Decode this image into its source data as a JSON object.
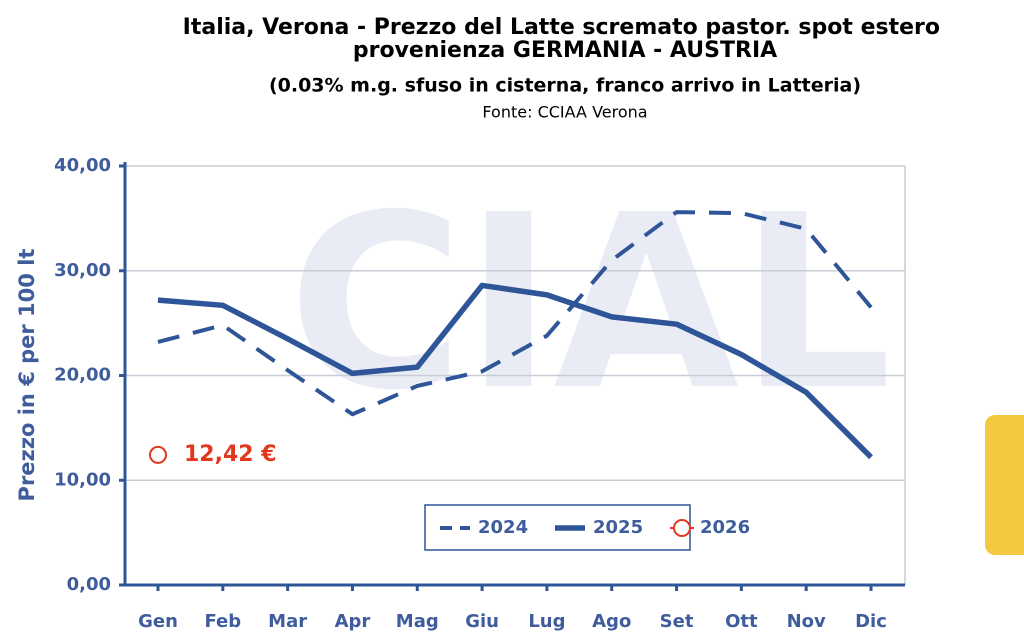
{
  "chart_data": {
    "type": "line",
    "title": "Italia, Verona - Prezzo del Latte scremato pastor. spot estero",
    "title_line2": "provenienza GERMANIA - AUSTRIA",
    "subtitle": "(0.03% m.g. sfuso in cisterna, franco arrivo in Latteria)",
    "source": "Fonte: CCIAA Verona",
    "watermark": "CIAL",
    "y_label": "Prezzo in € per 100 lt",
    "categories": [
      "Gen",
      "Feb",
      "Mar",
      "Apr",
      "Mag",
      "Giu",
      "Lug",
      "Ago",
      "Set",
      "Ott",
      "Nov",
      "Dic"
    ],
    "series": [
      {
        "name": "2024",
        "color": "#2e5597",
        "style": "dashed",
        "values": [
          23.2,
          24.8,
          20.5,
          16.3,
          19.0,
          20.4,
          23.8,
          31.0,
          35.6,
          35.5,
          34.0,
          26.5
        ]
      },
      {
        "name": "2025",
        "color": "#2e5597",
        "style": "solid",
        "values": [
          27.2,
          26.7,
          23.5,
          20.2,
          20.8,
          28.6,
          27.7,
          25.6,
          24.9,
          22.0,
          18.4,
          12.2
        ]
      },
      {
        "name": "2026",
        "color": "#e2381d",
        "style": "marker",
        "values": [
          12.42,
          null,
          null,
          null,
          null,
          null,
          null,
          null,
          null,
          null,
          null,
          null
        ],
        "value_labels": [
          "12,42 €",
          null,
          null,
          null,
          null,
          null,
          null,
          null,
          null,
          null,
          null,
          null
        ]
      }
    ],
    "ylim": [
      0,
      40
    ],
    "yticks": [
      {
        "value": 0,
        "label": "0,00"
      },
      {
        "value": 10,
        "label": "10,00"
      },
      {
        "value": 20,
        "label": "20,00"
      },
      {
        "value": 30,
        "label": "30,00"
      },
      {
        "value": 40,
        "label": "40,00"
      }
    ],
    "grid": true,
    "legend": "bottom"
  }
}
